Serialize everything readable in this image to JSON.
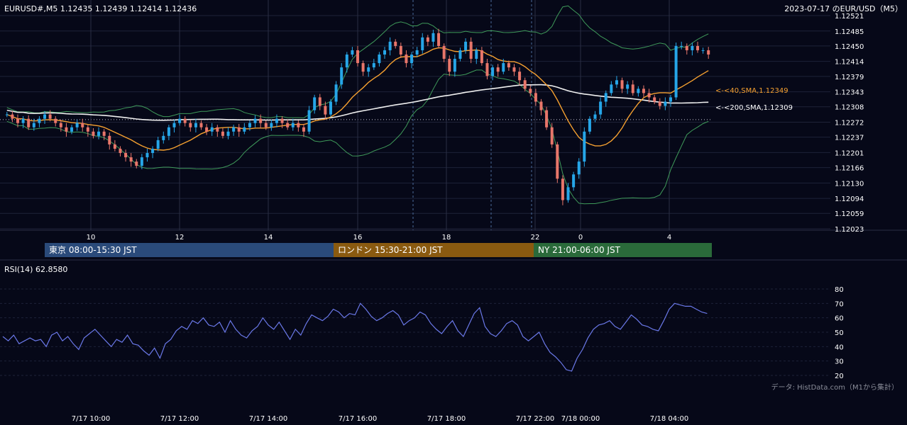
{
  "header": {
    "instrument_info": "EURUSD#,M5 1.12435 1.12439 1.12414 1.12436",
    "date_title": "2023-07-17 のEUR/USD（M5）"
  },
  "sessions": [
    {
      "label": "東京 08:00-15:30 JST",
      "color": "#2a4a7a"
    },
    {
      "label": "ロンドン 15:30-21:00 JST",
      "color": "#8a5a10"
    },
    {
      "label": "NY 21:00-06:00 JST",
      "color": "#2a6a3a"
    }
  ],
  "annotations": {
    "sma40": "<-<40,SMA,1.12349",
    "sma200": "<-<200,SMA,1.12309"
  },
  "rsi_label": "RSI(14) 62.8580",
  "credit": "データ: HistData.com（M1から集計）",
  "colors": {
    "background": "#060818",
    "grid": "#1e2238",
    "bull": "#26a6e8",
    "bear": "#e8766a",
    "sma40": "#f5a030",
    "sma200": "#f0f0f0",
    "bollinger": "#3f9a5a",
    "rsi": "#6a78e8"
  },
  "chart_data": [
    {
      "type": "candlestick",
      "title": "EUR/USD M5",
      "y_ticks": [
        "1.12521",
        "1.12485",
        "1.12450",
        "1.12414",
        "1.12379",
        "1.12343",
        "1.12308",
        "1.12272",
        "1.12237",
        "1.12201",
        "1.12166",
        "1.12130",
        "1.12094",
        "1.12059",
        "1.12023"
      ],
      "ylim": [
        1.12023,
        1.12521
      ],
      "x_ticks": [
        "10",
        "12",
        "14",
        "16",
        "18",
        "22",
        "0",
        "4"
      ],
      "dotted_reference_level": 1.12278,
      "series": [
        {
          "name": "close",
          "values": [
            1.1229,
            1.1228,
            1.1227,
            1.1228,
            1.1226,
            1.1227,
            1.1228,
            1.1229,
            1.1228,
            1.1227,
            1.1226,
            1.1225,
            1.1226,
            1.1227,
            1.1226,
            1.1225,
            1.1224,
            1.1225,
            1.1224,
            1.1222,
            1.1221,
            1.122,
            1.1219,
            1.1218,
            1.1217,
            1.1219,
            1.122,
            1.1221,
            1.1223,
            1.1224,
            1.1226,
            1.1227,
            1.1228,
            1.1227,
            1.1226,
            1.1227,
            1.1226,
            1.1225,
            1.1226,
            1.1225,
            1.1224,
            1.1225,
            1.1226,
            1.1225,
            1.1226,
            1.1227,
            1.1228,
            1.1227,
            1.1226,
            1.1227,
            1.1228,
            1.1227,
            1.1226,
            1.1227,
            1.1226,
            1.1225,
            1.123,
            1.1233,
            1.1231,
            1.1229,
            1.1232,
            1.1236,
            1.124,
            1.1243,
            1.1244,
            1.1241,
            1.1239,
            1.124,
            1.1241,
            1.1243,
            1.1244,
            1.1246,
            1.1245,
            1.1243,
            1.1241,
            1.1243,
            1.1244,
            1.1247,
            1.1246,
            1.1248,
            1.1245,
            1.1242,
            1.1239,
            1.1242,
            1.1244,
            1.1246,
            1.1242,
            1.1244,
            1.1241,
            1.1238,
            1.124,
            1.1239,
            1.1241,
            1.124,
            1.1239,
            1.1237,
            1.1235,
            1.1234,
            1.1232,
            1.123,
            1.1226,
            1.1222,
            1.1214,
            1.1209,
            1.1212,
            1.1215,
            1.1218,
            1.1225,
            1.1228,
            1.1229,
            1.1232,
            1.1234,
            1.1236,
            1.1237,
            1.1235,
            1.1236,
            1.1234,
            1.1235,
            1.1234,
            1.1233,
            1.1232,
            1.1231,
            1.1232,
            1.1233,
            1.1245,
            1.1245,
            1.1244,
            1.1245,
            1.1244,
            1.1244,
            1.1243
          ]
        }
      ]
    },
    {
      "type": "line",
      "title": "RSI(14) 62.8580",
      "y_ticks": [
        "80",
        "70",
        "60",
        "50",
        "40",
        "30",
        "20"
      ],
      "ylim": [
        20,
        80
      ],
      "x_ticks": [
        "7/17 10:00",
        "7/17 12:00",
        "7/17 14:00",
        "7/17 16:00",
        "7/17 18:00",
        "7/17 22:00",
        "7/18 00:00",
        "7/18 04:00"
      ],
      "series": [
        {
          "name": "RSI(14)",
          "values": [
            47,
            44,
            48,
            42,
            44,
            46,
            44,
            45,
            40,
            48,
            50,
            44,
            47,
            42,
            38,
            46,
            49,
            52,
            48,
            44,
            40,
            45,
            43,
            48,
            42,
            41,
            37,
            34,
            39,
            32,
            42,
            45,
            51,
            54,
            52,
            58,
            56,
            60,
            55,
            54,
            57,
            50,
            58,
            52,
            48,
            46,
            51,
            54,
            60,
            55,
            52,
            57,
            51,
            45,
            52,
            48,
            56,
            62,
            60,
            58,
            61,
            66,
            64,
            60,
            63,
            62,
            70,
            66,
            61,
            58,
            60,
            63,
            65,
            62,
            55,
            58,
            60,
            64,
            62,
            56,
            52,
            49,
            54,
            58,
            51,
            47,
            55,
            63,
            67,
            54,
            49,
            47,
            51,
            56,
            58,
            55,
            47,
            44,
            47,
            50,
            42,
            36,
            33,
            29,
            24,
            23,
            32,
            38,
            46,
            52,
            55,
            56,
            58,
            54,
            52,
            57,
            62,
            59,
            55,
            54,
            52,
            51,
            58,
            66,
            70,
            69,
            68,
            68,
            66,
            64,
            63
          ]
        }
      ]
    }
  ]
}
